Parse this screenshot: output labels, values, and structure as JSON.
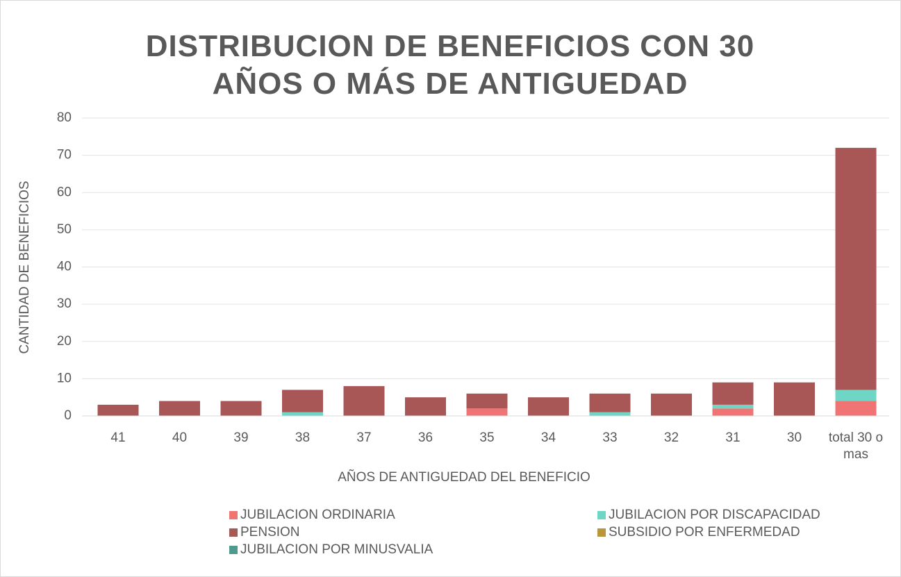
{
  "chart_data": {
    "type": "bar",
    "stacked": true,
    "title": "DISTRIBUCION DE BENEFICIOS CON 30 AÑOS O MÁS DE ANTIGUEDAD",
    "x_label": "AÑOS DE ANTIGUEDAD DEL BENEFICIO",
    "y_label": "CANTIDAD DE BENEFICIOS",
    "categories": [
      "41",
      "40",
      "39",
      "38",
      "37",
      "36",
      "35",
      "34",
      "33",
      "32",
      "31",
      "30",
      "total 30 o mas"
    ],
    "series": [
      {
        "name": "JUBILACION ORDINARIA",
        "color": "#f07474",
        "values": [
          0,
          0,
          0,
          0,
          0,
          0,
          2,
          0,
          0,
          0,
          2,
          0,
          4
        ]
      },
      {
        "name": "JUBILACION POR DISCAPACIDAD",
        "color": "#6fd6c6",
        "values": [
          0,
          0,
          0,
          1,
          0,
          0,
          0,
          0,
          1,
          0,
          1,
          0,
          3
        ]
      },
      {
        "name": "PENSION",
        "color": "#a85656",
        "values": [
          3,
          4,
          4,
          6,
          8,
          5,
          4,
          5,
          5,
          6,
          6,
          9,
          65
        ]
      },
      {
        "name": "SUBSIDIO POR ENFERMEDAD",
        "color": "#b8963c",
        "values": [
          0,
          0,
          0,
          0,
          0,
          0,
          0,
          0,
          0,
          0,
          0,
          0,
          0
        ]
      },
      {
        "name": "JUBILACION POR MINUSVALIA",
        "color": "#4f9a8a",
        "values": [
          0,
          0,
          0,
          0,
          0,
          0,
          0,
          0,
          0,
          0,
          0,
          0,
          0
        ]
      }
    ],
    "ylim": [
      0,
      80
    ],
    "yticks": [
      0,
      10,
      20,
      30,
      40,
      50,
      60,
      70,
      80
    ],
    "grid": true,
    "legend": "bottom"
  }
}
